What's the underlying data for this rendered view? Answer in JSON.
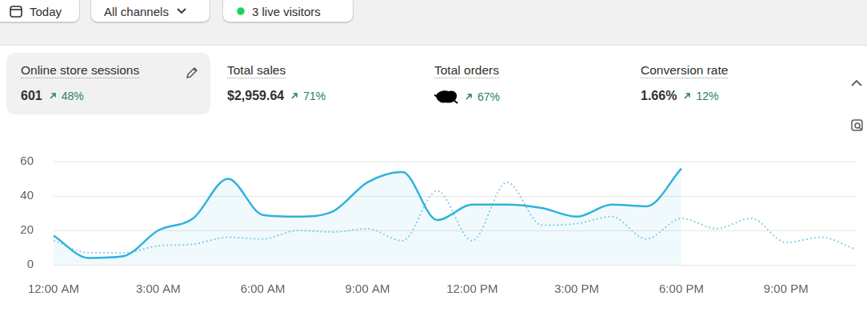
{
  "header": {
    "date_button": "Today",
    "channel_button": "All channels",
    "live_visitors": "3 live visitors"
  },
  "metrics": [
    {
      "label": "Online store sessions",
      "value": "601",
      "change": "48%"
    },
    {
      "label": "Total sales",
      "value": "$2,959.64",
      "change": "71%"
    },
    {
      "label": "Total orders",
      "change": "67%"
    },
    {
      "label": "Conversion rate",
      "value": "1.66%",
      "change": "12%"
    }
  ],
  "chart_data": {
    "type": "line",
    "categories": [
      "12:00 AM",
      null,
      null,
      "3:00 AM",
      null,
      null,
      "6:00 AM",
      null,
      null,
      "9:00 AM",
      null,
      null,
      "12:00 PM",
      null,
      null,
      "3:00 PM",
      null,
      null,
      "6:00 PM",
      null,
      null,
      "9:00 PM",
      null,
      null
    ],
    "series": [
      {
        "color": "#30b2dc",
        "line_style": "solid",
        "values": [
          17,
          4,
          5,
          20,
          27,
          50,
          29,
          28,
          31,
          48,
          54,
          26,
          35,
          35,
          33,
          28,
          35,
          34,
          56,
          null,
          null,
          null,
          null,
          null
        ]
      },
      {
        "color": "#8ccfe6",
        "line_style": "dotted",
        "values": [
          14,
          7,
          7,
          11,
          12,
          16,
          15,
          20,
          19,
          21,
          14,
          43,
          14,
          48,
          23,
          24,
          28,
          15,
          27,
          21,
          27,
          13,
          16,
          9
        ]
      }
    ],
    "ylim": [
      0,
      60
    ],
    "yticks": [
      0,
      20,
      40,
      60
    ],
    "grid": true
  }
}
